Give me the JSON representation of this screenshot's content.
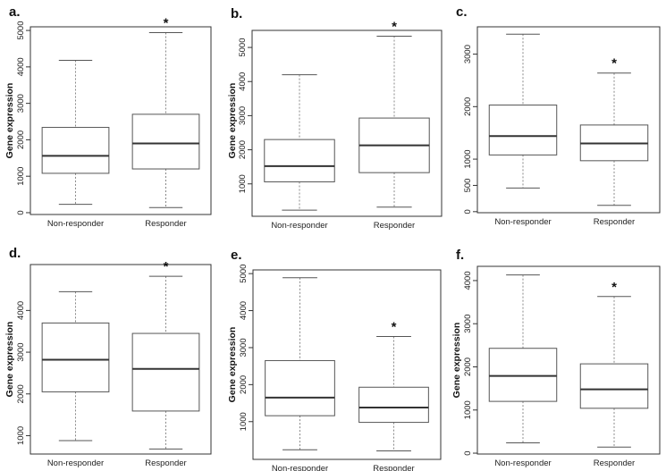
{
  "chart_data": [
    {
      "panel": "a.",
      "type": "box",
      "ylabel": "Gene expression",
      "categories": [
        "Non-responder",
        "Responder"
      ],
      "yticks": [
        0,
        1000,
        2000,
        3000,
        4000,
        5000
      ],
      "ytick_labels": [
        "0",
        "1000",
        "2000",
        "3000",
        "4000",
        "5000"
      ],
      "ylim": [
        -50,
        5100
      ],
      "boxes": [
        {
          "min": 230,
          "q1": 1080,
          "median": 1560,
          "q3": 2340,
          "max": 4180
        },
        {
          "min": 140,
          "q1": 1200,
          "median": 1900,
          "q3": 2700,
          "max": 4940
        }
      ],
      "significant": "Responder",
      "star": "*"
    },
    {
      "panel": "b.",
      "type": "box",
      "ylabel": "Gene expression",
      "categories": [
        "Non-responder",
        "Responder"
      ],
      "yticks": [
        1000,
        2000,
        3000,
        4000,
        5000
      ],
      "ytick_labels": [
        "1000",
        "2000",
        "3000",
        "4000",
        "5000"
      ],
      "ylim": [
        50,
        5500
      ],
      "boxes": [
        {
          "min": 230,
          "q1": 1060,
          "median": 1520,
          "q3": 2300,
          "max": 4200
        },
        {
          "min": 320,
          "q1": 1330,
          "median": 2130,
          "q3": 2930,
          "max": 5330
        }
      ],
      "significant": "Responder",
      "star": "*"
    },
    {
      "panel": "c.",
      "type": "box",
      "ylabel": "",
      "categories": [
        "Non-responder",
        "Responder"
      ],
      "yticks": [
        0,
        500,
        1000,
        2000,
        3000
      ],
      "ytick_labels": [
        "0",
        "500",
        "1000",
        "2000",
        "3000"
      ],
      "ylim": [
        -20,
        3520
      ],
      "boxes": [
        {
          "min": 450,
          "q1": 1080,
          "median": 1440,
          "q3": 2030,
          "max": 3380
        },
        {
          "min": 120,
          "q1": 970,
          "median": 1300,
          "q3": 1650,
          "max": 2640
        }
      ],
      "significant": "Responder",
      "star": "*"
    },
    {
      "panel": "d.",
      "type": "box",
      "ylabel": "Gene expression",
      "categories": [
        "Non-responder",
        "Responder"
      ],
      "yticks": [
        1000,
        2000,
        3000,
        4000
      ],
      "ytick_labels": [
        "1000",
        "2000",
        "3000",
        "4000"
      ],
      "ylim": [
        560,
        5100
      ],
      "boxes": [
        {
          "min": 880,
          "q1": 2050,
          "median": 2820,
          "q3": 3700,
          "max": 4450
        },
        {
          "min": 680,
          "q1": 1590,
          "median": 2600,
          "q3": 3450,
          "max": 4820
        }
      ],
      "significant": "Responder",
      "star": "*"
    },
    {
      "panel": "e.",
      "type": "box",
      "ylabel": "Gene expression",
      "categories": [
        "Non-responder",
        "Responder"
      ],
      "yticks": [
        1000,
        2000,
        3000,
        4000,
        5000
      ],
      "ytick_labels": [
        "1000",
        "2000",
        "3000",
        "4000",
        "5000"
      ],
      "ylim": [
        -20,
        5100
      ],
      "boxes": [
        {
          "min": 240,
          "q1": 1160,
          "median": 1650,
          "q3": 2650,
          "max": 4890
        },
        {
          "min": 210,
          "q1": 980,
          "median": 1380,
          "q3": 1930,
          "max": 3300
        }
      ],
      "significant": "Responder",
      "star": "*"
    },
    {
      "panel": "f.",
      "type": "box",
      "ylabel": "Gene expression",
      "categories": [
        "Non-responder",
        "Responder"
      ],
      "yticks": [
        0,
        1000,
        2000,
        3000,
        4000
      ],
      "ytick_labels": [
        "0",
        "1000",
        "2000",
        "3000",
        "4000"
      ],
      "ylim": [
        -20,
        4330
      ],
      "boxes": [
        {
          "min": 240,
          "q1": 1200,
          "median": 1790,
          "q3": 2430,
          "max": 4130
        },
        {
          "min": 140,
          "q1": 1040,
          "median": 1480,
          "q3": 2070,
          "max": 3630
        }
      ],
      "significant": "Responder",
      "star": "*"
    }
  ]
}
